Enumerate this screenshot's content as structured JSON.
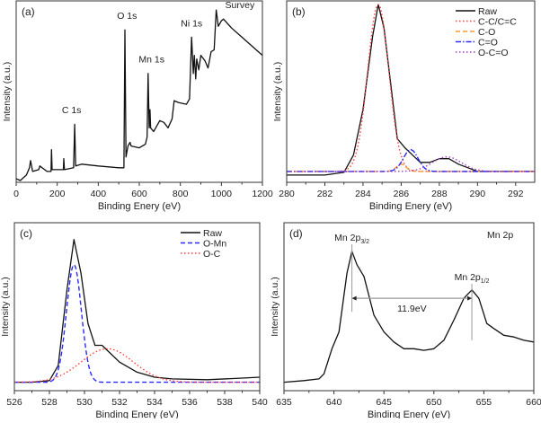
{
  "chart_data": [
    {
      "panel": "(a)",
      "type": "line",
      "xlabel": "Binding Enery (eV)",
      "ylabel": "Intensity (a.u.)",
      "xlim": [
        0,
        1200
      ],
      "ylim": [
        0,
        100
      ],
      "xticks": [
        0,
        200,
        400,
        600,
        800,
        1000,
        1200
      ],
      "grid": false,
      "annotations": [
        {
          "text": "Survey",
          "x": 1090,
          "y": 96
        },
        {
          "text": "C 1s",
          "x": 270,
          "y": 38
        },
        {
          "text": "O 1s",
          "x": 540,
          "y": 90
        },
        {
          "text": "Mn 1s",
          "x": 660,
          "y": 66
        },
        {
          "text": "Ni 1s",
          "x": 855,
          "y": 86
        }
      ],
      "series": [
        {
          "style": "solid",
          "color": "#111111",
          "points": [
            [
              0,
              2
            ],
            [
              20,
              1
            ],
            [
              50,
              4
            ],
            [
              65,
              8
            ],
            [
              70,
              12
            ],
            [
              80,
              6
            ],
            [
              110,
              7
            ],
            [
              115,
              9
            ],
            [
              150,
              6
            ],
            [
              170,
              6
            ],
            [
              172,
              18
            ],
            [
              175,
              7
            ],
            [
              230,
              7
            ],
            [
              232,
              13
            ],
            [
              235,
              7
            ],
            [
              280,
              8
            ],
            [
              285,
              32
            ],
            [
              290,
              9
            ],
            [
              320,
              10
            ],
            [
              400,
              9
            ],
            [
              500,
              8
            ],
            [
              525,
              8
            ],
            [
              530,
              84
            ],
            [
              535,
              14
            ],
            [
              545,
              20
            ],
            [
              555,
              22
            ],
            [
              560,
              20
            ],
            [
              600,
              19
            ],
            [
              630,
              21
            ],
            [
              638,
              25
            ],
            [
              643,
              60
            ],
            [
              648,
              30
            ],
            [
              652,
              40
            ],
            [
              655,
              30
            ],
            [
              670,
              28
            ],
            [
              700,
              34
            ],
            [
              720,
              33
            ],
            [
              740,
              30
            ],
            [
              760,
              35
            ],
            [
              770,
              45
            ],
            [
              790,
              44
            ],
            [
              830,
              43
            ],
            [
              845,
              46
            ],
            [
              855,
              80
            ],
            [
              863,
              60
            ],
            [
              868,
              70
            ],
            [
              875,
              57
            ],
            [
              880,
              68
            ],
            [
              890,
              62
            ],
            [
              900,
              70
            ],
            [
              920,
              67
            ],
            [
              935,
              63
            ],
            [
              950,
              72
            ],
            [
              965,
              73
            ],
            [
              975,
              95
            ],
            [
              985,
              86
            ],
            [
              1000,
              89
            ],
            [
              1010,
              90
            ],
            [
              1050,
              85
            ],
            [
              1100,
              80
            ],
            [
              1150,
              75
            ],
            [
              1200,
              70
            ]
          ]
        }
      ]
    },
    {
      "panel": "(b)",
      "type": "line",
      "xlabel": "Binding Enery (eV)",
      "ylabel": "Intensity (a.u.)",
      "xlim": [
        280,
        293
      ],
      "ylim": [
        0,
        100
      ],
      "xticks": [
        280,
        282,
        284,
        286,
        288,
        290,
        292
      ],
      "grid": false,
      "legend": "top-right",
      "baseline": 6,
      "series": [
        {
          "name": "Raw",
          "style": "solid",
          "color": "#111111",
          "points": [
            [
              280,
              4
            ],
            [
              281,
              4
            ],
            [
              282,
              4
            ],
            [
              283,
              5.5
            ],
            [
              283.5,
              15
            ],
            [
              284,
              40
            ],
            [
              284.5,
              80
            ],
            [
              284.8,
              98
            ],
            [
              285.1,
              85
            ],
            [
              285.5,
              50
            ],
            [
              285.8,
              24
            ],
            [
              286.2,
              19
            ],
            [
              286.6,
              15
            ],
            [
              287,
              11
            ],
            [
              287.5,
              11
            ],
            [
              288,
              13
            ],
            [
              288.5,
              13
            ],
            [
              289,
              10
            ],
            [
              289.5,
              8
            ],
            [
              290,
              6
            ],
            [
              291,
              6
            ],
            [
              293,
              6
            ]
          ]
        },
        {
          "name": "C-C/C=C",
          "style": "dotted",
          "color": "#ff3b3b",
          "peak": {
            "center": 284.8,
            "fwhm": 1.3,
            "height": 92
          }
        },
        {
          "name": "C-O",
          "style": "dashed",
          "color": "#ff9a2e",
          "peak": {
            "center": 286.0,
            "fwhm": 0.6,
            "height": 4
          }
        },
        {
          "name": "C=O",
          "style": "dashdot",
          "color": "#2b2bff",
          "peak": {
            "center": 286.5,
            "fwhm": 0.9,
            "height": 12
          }
        },
        {
          "name": "O-C=O",
          "style": "dotted",
          "color": "#a040c0",
          "peak": {
            "center": 288.4,
            "fwhm": 1.8,
            "height": 8
          }
        }
      ]
    },
    {
      "panel": "(c)",
      "type": "line",
      "xlabel": "Binding Enery (eV)",
      "ylabel": "Intensity (a.u.)",
      "xlim": [
        526,
        540
      ],
      "ylim": [
        0,
        100
      ],
      "xticks": [
        526,
        528,
        530,
        532,
        534,
        536,
        538,
        540
      ],
      "grid": false,
      "legend": "top-right",
      "baseline": 5,
      "series": [
        {
          "name": "Raw",
          "style": "solid",
          "color": "#111111",
          "points": [
            [
              526,
              5
            ],
            [
              527,
              5
            ],
            [
              528,
              6
            ],
            [
              528.5,
              15
            ],
            [
              529,
              60
            ],
            [
              529.4,
              90
            ],
            [
              529.8,
              70
            ],
            [
              530.2,
              40
            ],
            [
              530.6,
              27
            ],
            [
              531,
              27
            ],
            [
              531.5,
              22
            ],
            [
              532,
              17
            ],
            [
              533,
              11
            ],
            [
              534,
              8
            ],
            [
              535,
              7
            ],
            [
              537,
              6.5
            ],
            [
              539,
              7.5
            ],
            [
              540,
              8
            ]
          ]
        },
        {
          "name": "O-Mn",
          "style": "dashed",
          "color": "#2b2bff",
          "peak": {
            "center": 529.4,
            "fwhm": 1.0,
            "height": 70
          }
        },
        {
          "name": "O-C",
          "style": "dotted",
          "color": "#ff3b3b",
          "peak": {
            "center": 531.3,
            "fwhm": 3.5,
            "height": 20
          }
        }
      ]
    },
    {
      "panel": "(d)",
      "type": "line",
      "xlabel": "Binding Enery (eV)",
      "ylabel": "Intensity (a.u.)",
      "xlim": [
        635,
        660
      ],
      "ylim": [
        0,
        100
      ],
      "xticks": [
        635,
        640,
        645,
        650,
        655,
        660
      ],
      "grid": false,
      "title_note": "Mn 2p",
      "peak_labels": [
        {
          "main": "Mn 2p",
          "sub": "3/2",
          "x": 641.8
        },
        {
          "main": "Mn 2p",
          "sub": "1/2",
          "x": 653.8
        }
      ],
      "splitting": {
        "text": "11.9eV",
        "from": 641.8,
        "to": 653.8,
        "y": 55
      },
      "series": [
        {
          "style": "solid",
          "color": "#111111",
          "points": [
            [
              635,
              5
            ],
            [
              637,
              6
            ],
            [
              638.5,
              7
            ],
            [
              639,
              10
            ],
            [
              639.8,
              25
            ],
            [
              640.5,
              35
            ],
            [
              641.3,
              70
            ],
            [
              641.8,
              83
            ],
            [
              642.3,
              75
            ],
            [
              643,
              68
            ],
            [
              644,
              45
            ],
            [
              645,
              35
            ],
            [
              646,
              29
            ],
            [
              647,
              25
            ],
            [
              648,
              25
            ],
            [
              649,
              24
            ],
            [
              650,
              25
            ],
            [
              651,
              30
            ],
            [
              652,
              42
            ],
            [
              653,
              55
            ],
            [
              653.8,
              60
            ],
            [
              654.5,
              55
            ],
            [
              655.3,
              40
            ],
            [
              656,
              37
            ],
            [
              657,
              33
            ],
            [
              658,
              32
            ],
            [
              659,
              30
            ],
            [
              660,
              29
            ]
          ]
        }
      ]
    }
  ]
}
